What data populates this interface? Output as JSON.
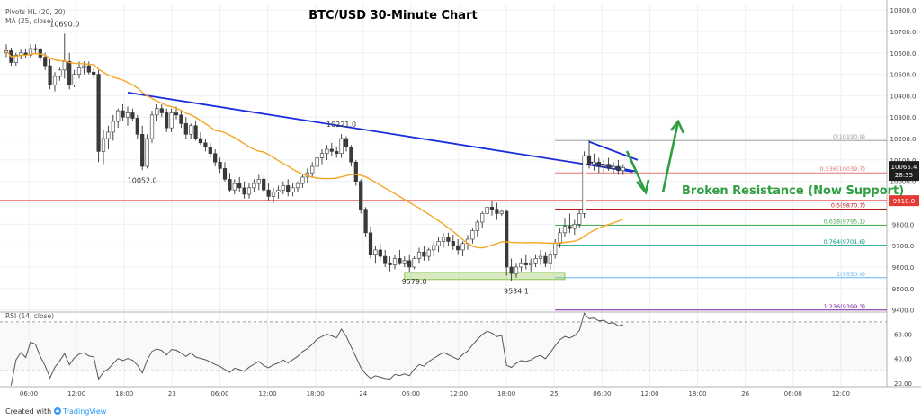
{
  "chart_data": {
    "type": "candlestick",
    "title": "BTC/USD 30-Minute Chart",
    "indicators": [
      "Pivots HL (20, 20)",
      "MA (25, close)"
    ],
    "rsi_label": "RSI (14, close)",
    "footer": {
      "created_with": "Created with",
      "brand": "TradingView"
    },
    "price_axis": {
      "range": [
        9390,
        10830
      ],
      "ticks": [
        10800,
        10700,
        10600,
        10500,
        10400,
        10300,
        10200,
        10100,
        10000,
        9900,
        9800,
        9700,
        9600,
        9500,
        9400
      ],
      "tick_labels": [
        "10800.0",
        "10700.0",
        "10600.0",
        "10500.0",
        "10400.0",
        "10300.0",
        "10200.0",
        "10100.0",
        "10000.0",
        "9900.0",
        "9800.0",
        "9700.0",
        "9600.0",
        "9500.0",
        "9400.0"
      ]
    },
    "rsi_axis": {
      "range": [
        17,
        78
      ],
      "ticks": [
        60,
        40,
        20
      ],
      "tick_labels": [
        "60.00",
        "40.00",
        "20.00"
      ],
      "levels": [
        70,
        30
      ]
    },
    "time_axis": {
      "labels": [
        "06:00",
        "12:00",
        "18:00",
        "23",
        "06:00",
        "12:00",
        "18:00",
        "24",
        "06:00",
        "12:00",
        "18:00",
        "25",
        "06:00",
        "12:00",
        "18:00",
        "26",
        "06:00",
        "12:00"
      ]
    },
    "current_price": {
      "value": 10065.4,
      "label": "10065.4",
      "countdown": "28:35"
    },
    "support_level": {
      "value": 9910,
      "label": "9910.0",
      "color": "#e53935"
    },
    "pivot_labels": [
      {
        "text": "10690.0",
        "bar": 12,
        "price": 10690
      },
      {
        "text": "10052.0",
        "bar": 28,
        "price": 10052
      },
      {
        "text": "10221.0",
        "bar": 69,
        "price": 10221
      },
      {
        "text": "9579.0",
        "bar": 84,
        "price": 9579
      },
      {
        "text": "9534.1",
        "bar": 105,
        "price": 9534.1
      }
    ],
    "fibonacci": {
      "bar_start": 113,
      "levels": [
        {
          "ratio": "0",
          "value": 10190.9,
          "label": "0(10190.9)",
          "color": "#9e9e9e"
        },
        {
          "ratio": "0.236",
          "value": 10039.7,
          "label": "0.236(10039.7)",
          "color": "#e57373"
        },
        {
          "ratio": "0.5",
          "value": 9870.7,
          "label": "0.5(9870.7)",
          "color": "#b71c1c"
        },
        {
          "ratio": "0.618",
          "value": 9795.1,
          "label": "0.618(9795.1)",
          "color": "#4caf50"
        },
        {
          "ratio": "0.764",
          "value": 9701.6,
          "label": "0.764(9701.6)",
          "color": "#009688"
        },
        {
          "ratio": "1",
          "value": 9550.4,
          "label": "1(9550.4)",
          "color": "#64b5f6"
        },
        {
          "ratio": "1.236",
          "value": 9399.3,
          "label": "1.236(9399.3)",
          "color": "#7b1fa2"
        }
      ]
    },
    "annotation": {
      "text": "Broken Resistance (Now Support)",
      "color": "#2e9e3f"
    },
    "trendline": {
      "from": [
        25,
        10415
      ],
      "to": [
        129,
        10045
      ],
      "color": "#1a2edb"
    },
    "wedge": {
      "upper": [
        [
          120,
          10185
        ],
        [
          130,
          10100
        ]
      ],
      "lower": [
        [
          120,
          10090
        ],
        [
          130,
          10045
        ]
      ],
      "color": "#1a2edb"
    },
    "support_box": {
      "bars": [
        82,
        115
      ],
      "prices": [
        9542,
        9575
      ],
      "color": "#8bc34a"
    },
    "ohlc": [
      [
        10600,
        10640,
        10580,
        10610
      ],
      [
        10610,
        10625,
        10540,
        10555
      ],
      [
        10555,
        10600,
        10540,
        10590
      ],
      [
        10590,
        10615,
        10570,
        10600
      ],
      [
        10600,
        10620,
        10575,
        10590
      ],
      [
        10590,
        10640,
        10575,
        10620
      ],
      [
        10620,
        10640,
        10600,
        10615
      ],
      [
        10615,
        10625,
        10560,
        10580
      ],
      [
        10580,
        10600,
        10520,
        10540
      ],
      [
        10540,
        10570,
        10430,
        10450
      ],
      [
        10450,
        10510,
        10420,
        10490
      ],
      [
        10490,
        10530,
        10470,
        10520
      ],
      [
        10520,
        10690,
        10480,
        10560
      ],
      [
        10560,
        10600,
        10430,
        10450
      ],
      [
        10450,
        10520,
        10440,
        10500
      ],
      [
        10500,
        10560,
        10480,
        10530
      ],
      [
        10530,
        10560,
        10500,
        10540
      ],
      [
        10540,
        10560,
        10500,
        10510
      ],
      [
        10510,
        10530,
        10480,
        10500
      ],
      [
        10500,
        10520,
        10090,
        10140
      ],
      [
        10140,
        10240,
        10080,
        10200
      ],
      [
        10200,
        10260,
        10150,
        10230
      ],
      [
        10230,
        10310,
        10190,
        10280
      ],
      [
        10280,
        10340,
        10250,
        10330
      ],
      [
        10330,
        10360,
        10280,
        10300
      ],
      [
        10300,
        10350,
        10260,
        10320
      ],
      [
        10320,
        10340,
        10280,
        10295
      ],
      [
        10295,
        10310,
        10200,
        10220
      ],
      [
        10220,
        10260,
        10052,
        10070
      ],
      [
        10070,
        10220,
        10060,
        10200
      ],
      [
        10200,
        10330,
        10180,
        10310
      ],
      [
        10310,
        10360,
        10280,
        10340
      ],
      [
        10340,
        10360,
        10300,
        10320
      ],
      [
        10320,
        10340,
        10230,
        10250
      ],
      [
        10250,
        10340,
        10230,
        10320
      ],
      [
        10320,
        10350,
        10290,
        10310
      ],
      [
        10310,
        10330,
        10250,
        10270
      ],
      [
        10270,
        10300,
        10200,
        10220
      ],
      [
        10220,
        10270,
        10200,
        10260
      ],
      [
        10260,
        10280,
        10190,
        10200
      ],
      [
        10200,
        10230,
        10170,
        10180
      ],
      [
        10180,
        10200,
        10140,
        10160
      ],
      [
        10160,
        10180,
        10110,
        10130
      ],
      [
        10130,
        10150,
        10070,
        10090
      ],
      [
        10090,
        10110,
        10040,
        10060
      ],
      [
        10060,
        10090,
        10000,
        10010
      ],
      [
        10010,
        10040,
        9950,
        9960
      ],
      [
        9960,
        10010,
        9940,
        9990
      ],
      [
        9990,
        10020,
        9950,
        9970
      ],
      [
        9970,
        10000,
        9920,
        9940
      ],
      [
        9940,
        9990,
        9920,
        9970
      ],
      [
        9970,
        10010,
        9950,
        9990
      ],
      [
        9990,
        10030,
        9960,
        10010
      ],
      [
        10010,
        10020,
        9950,
        9960
      ],
      [
        9960,
        9990,
        9910,
        9930
      ],
      [
        9930,
        9970,
        9900,
        9950
      ],
      [
        9950,
        9980,
        9920,
        9960
      ],
      [
        9960,
        10000,
        9940,
        9980
      ],
      [
        9980,
        10010,
        9930,
        9950
      ],
      [
        9950,
        9990,
        9930,
        9970
      ],
      [
        9970,
        10000,
        9950,
        9990
      ],
      [
        9990,
        10030,
        9970,
        10020
      ],
      [
        10020,
        10060,
        9990,
        10040
      ],
      [
        10040,
        10090,
        10020,
        10070
      ],
      [
        10070,
        10120,
        10050,
        10110
      ],
      [
        10110,
        10150,
        10080,
        10130
      ],
      [
        10130,
        10170,
        10100,
        10150
      ],
      [
        10150,
        10180,
        10120,
        10140
      ],
      [
        10140,
        10160,
        10110,
        10130
      ],
      [
        10130,
        10221,
        10110,
        10200
      ],
      [
        10200,
        10210,
        10140,
        10160
      ],
      [
        10160,
        10170,
        10070,
        10090
      ],
      [
        10090,
        10100,
        9980,
        10000
      ],
      [
        10000,
        10010,
        9850,
        9870
      ],
      [
        9870,
        9880,
        9740,
        9760
      ],
      [
        9760,
        9790,
        9640,
        9660
      ],
      [
        9660,
        9700,
        9620,
        9680
      ],
      [
        9680,
        9710,
        9630,
        9650
      ],
      [
        9650,
        9680,
        9600,
        9620
      ],
      [
        9620,
        9650,
        9580,
        9610
      ],
      [
        9610,
        9660,
        9590,
        9640
      ],
      [
        9640,
        9680,
        9610,
        9620
      ],
      [
        9620,
        9650,
        9600,
        9630
      ],
      [
        9630,
        9660,
        9579,
        9600
      ],
      [
        9600,
        9650,
        9590,
        9640
      ],
      [
        9640,
        9690,
        9620,
        9670
      ],
      [
        9670,
        9700,
        9630,
        9650
      ],
      [
        9650,
        9690,
        9630,
        9680
      ],
      [
        9680,
        9720,
        9650,
        9700
      ],
      [
        9700,
        9740,
        9670,
        9720
      ],
      [
        9720,
        9760,
        9690,
        9740
      ],
      [
        9740,
        9760,
        9700,
        9720
      ],
      [
        9720,
        9750,
        9680,
        9700
      ],
      [
        9700,
        9730,
        9660,
        9680
      ],
      [
        9680,
        9720,
        9650,
        9710
      ],
      [
        9710,
        9750,
        9680,
        9730
      ],
      [
        9730,
        9780,
        9710,
        9770
      ],
      [
        9770,
        9820,
        9740,
        9810
      ],
      [
        9810,
        9860,
        9780,
        9850
      ],
      [
        9850,
        9890,
        9820,
        9880
      ],
      [
        9880,
        9910,
        9840,
        9870
      ],
      [
        9870,
        9900,
        9820,
        9850
      ],
      [
        9850,
        9870,
        9840,
        9860
      ],
      [
        9860,
        9870,
        9560,
        9600
      ],
      [
        9600,
        9640,
        9534,
        9570
      ],
      [
        9570,
        9620,
        9550,
        9600
      ],
      [
        9600,
        9640,
        9580,
        9620
      ],
      [
        9620,
        9660,
        9590,
        9610
      ],
      [
        9610,
        9640,
        9580,
        9620
      ],
      [
        9620,
        9660,
        9600,
        9640
      ],
      [
        9640,
        9680,
        9610,
        9650
      ],
      [
        9650,
        9670,
        9600,
        9620
      ],
      [
        9620,
        9680,
        9590,
        9660
      ],
      [
        9660,
        9730,
        9640,
        9710
      ],
      [
        9710,
        9780,
        9690,
        9760
      ],
      [
        9760,
        9830,
        9740,
        9790
      ],
      [
        9790,
        9850,
        9760,
        9780
      ],
      [
        9780,
        9820,
        9750,
        9800
      ],
      [
        9800,
        9870,
        9780,
        9850
      ],
      [
        9850,
        10140,
        9830,
        10120
      ],
      [
        10120,
        10191,
        10060,
        10080
      ],
      [
        10080,
        10130,
        10050,
        10090
      ],
      [
        10090,
        10110,
        10040,
        10070
      ],
      [
        10070,
        10100,
        10040,
        10080
      ],
      [
        10080,
        10110,
        10050,
        10060
      ],
      [
        10060,
        10090,
        10040,
        10070
      ],
      [
        10070,
        10100,
        10030,
        10050
      ],
      [
        10050,
        10080,
        10030,
        10065
      ]
    ]
  }
}
